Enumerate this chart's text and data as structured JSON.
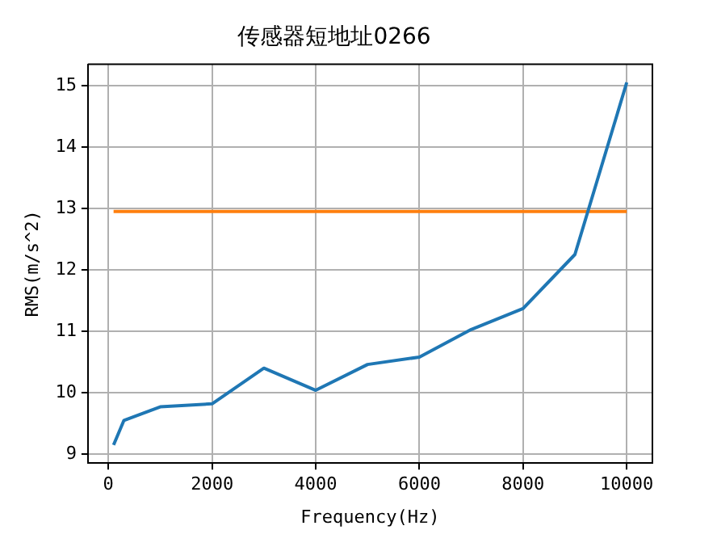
{
  "chart_data": {
    "type": "line",
    "title": "传感器短地址0266",
    "xlabel": "Frequency(Hz)",
    "ylabel": "RMS(m/s^2)",
    "series": [
      {
        "color": "#1f77b4",
        "x": [
          100,
          300,
          1000,
          2000,
          3000,
          4000,
          5000,
          6000,
          7000,
          8000,
          9000,
          10000
        ],
        "values": [
          9.15,
          9.55,
          9.77,
          9.82,
          10.4,
          10.04,
          10.46,
          10.58,
          11.03,
          11.37,
          12.25,
          15.05
        ]
      },
      {
        "color": "#ff7f0e",
        "x": [
          100,
          10000
        ],
        "values": [
          12.95,
          12.95
        ]
      }
    ],
    "xlim": [
      -395,
      10495
    ],
    "xticks": [
      0,
      2000,
      4000,
      6000,
      8000,
      10000
    ],
    "ylim": [
      8.855,
      15.345
    ],
    "yticks": [
      9,
      10,
      11,
      12,
      13,
      14,
      15
    ],
    "grid": true,
    "legend": false,
    "marker": "none",
    "line_style": "solid"
  }
}
